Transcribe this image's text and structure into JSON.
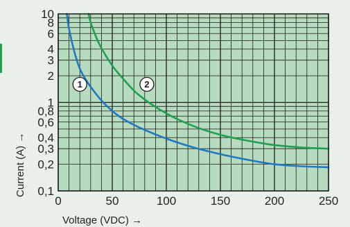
{
  "chart_data": {
    "type": "line",
    "xlabel": "Voltage (VDC) →",
    "ylabel": "Current (A) →",
    "x_scale": "linear",
    "y_scale": "log",
    "xlim": [
      0,
      250
    ],
    "ylim": [
      0.1,
      10
    ],
    "x_ticks": [
      "0",
      "50",
      "100",
      "150",
      "200",
      "250"
    ],
    "y_ticks": [
      {
        "value": 10,
        "label": "10"
      },
      {
        "value": 8,
        "label": "8"
      },
      {
        "value": 6,
        "label": "6"
      },
      {
        "value": 4,
        "label": "4"
      },
      {
        "value": 3,
        "label": "3"
      },
      {
        "value": 2,
        "label": "2"
      },
      {
        "value": 1,
        "label": "1"
      },
      {
        "value": 0.8,
        "label": "0,8"
      },
      {
        "value": 0.6,
        "label": "0,6"
      },
      {
        "value": 0.4,
        "label": "0,4"
      },
      {
        "value": 0.3,
        "label": "0,3"
      },
      {
        "value": 0.2,
        "label": "0,2"
      },
      {
        "value": 0.1,
        "label": "0,1"
      }
    ],
    "grid": true,
    "series": [
      {
        "marker_label": "1",
        "color": "#1f78c1",
        "x": [
          8,
          10,
          15,
          20,
          25,
          30,
          40,
          50,
          60,
          75,
          100,
          125,
          150,
          175,
          200,
          225,
          250
        ],
        "y": [
          10,
          6.8,
          3.7,
          2.4,
          1.85,
          1.5,
          1.05,
          0.8,
          0.65,
          0.52,
          0.39,
          0.31,
          0.26,
          0.225,
          0.2,
          0.19,
          0.185
        ]
      },
      {
        "marker_label": "2",
        "color": "#1ea050",
        "x": [
          28,
          30,
          35,
          40,
          50,
          60,
          75,
          100,
          125,
          150,
          175,
          200,
          225,
          250
        ],
        "y": [
          10,
          8,
          5.5,
          4.1,
          2.6,
          1.85,
          1.2,
          0.75,
          0.54,
          0.43,
          0.37,
          0.33,
          0.31,
          0.3
        ]
      }
    ]
  }
}
